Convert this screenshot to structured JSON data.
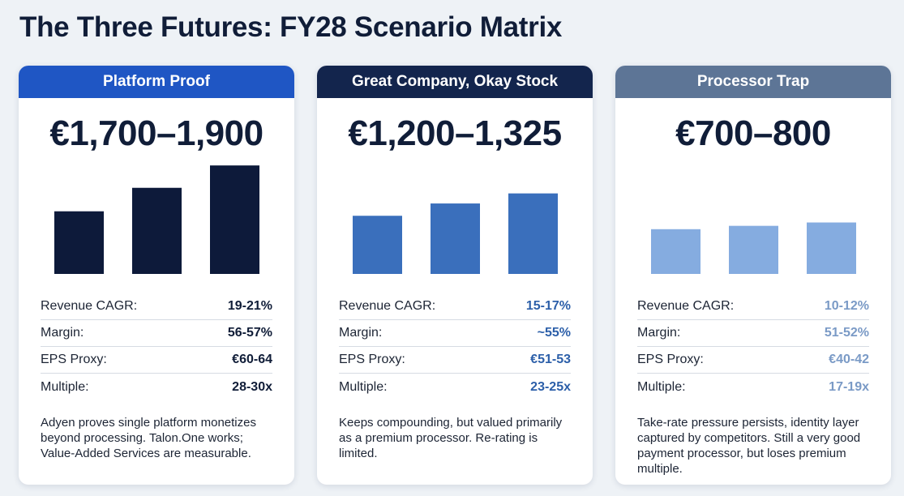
{
  "title": "The Three Futures: FY28 Scenario Matrix",
  "chart_data": [
    {
      "type": "bar",
      "title": "Platform Proof",
      "categories": [
        "",
        "",
        ""
      ],
      "values": [
        56,
        77,
        97
      ],
      "ylim": [
        0,
        100
      ],
      "color": "#0d1a3a",
      "headline": "€1,700–1,900"
    },
    {
      "type": "bar",
      "title": "Great Company, Okay Stock",
      "categories": [
        "",
        "",
        ""
      ],
      "values": [
        52,
        63,
        72
      ],
      "ylim": [
        0,
        100
      ],
      "color": "#3a6fbc",
      "headline": "€1,200–1,325"
    },
    {
      "type": "bar",
      "title": "Processor Trap",
      "categories": [
        "",
        "",
        ""
      ],
      "values": [
        40,
        43,
        46
      ],
      "ylim": [
        0,
        100
      ],
      "color": "#85ace0",
      "headline": "€700–800"
    }
  ],
  "scenarios": [
    {
      "name": "Platform Proof",
      "header_color": "#1f56c4",
      "value_color": "#101d38",
      "price": "€1,700–1,900",
      "metrics": [
        {
          "label": "Revenue CAGR:",
          "value": "19-21%"
        },
        {
          "label": "Margin:",
          "value": "56-57%"
        },
        {
          "label": "EPS Proxy:",
          "value": "€60-64"
        },
        {
          "label": "Multiple:",
          "value": "28-30x"
        }
      ],
      "description": "Adyen proves single platform monetizes beyond processing. Talon.One works; Value-Added Services are measurable."
    },
    {
      "name": "Great Company, Okay Stock",
      "header_color": "#13254d",
      "value_color": "#2c5fa9",
      "price": "€1,200–1,325",
      "metrics": [
        {
          "label": "Revenue CAGR:",
          "value": "15-17%"
        },
        {
          "label": "Margin:",
          "value": "~55%"
        },
        {
          "label": "EPS Proxy:",
          "value": "€51-53"
        },
        {
          "label": "Multiple:",
          "value": "23-25x"
        }
      ],
      "description": "Keeps compounding, but valued primarily as a premium processor. Re-rating is limited."
    },
    {
      "name": "Processor Trap",
      "header_color": "#5d7596",
      "value_color": "#7a9ac6",
      "price": "€700–800",
      "metrics": [
        {
          "label": "Revenue CAGR:",
          "value": "10-12%"
        },
        {
          "label": "Margin:",
          "value": "51-52%"
        },
        {
          "label": "EPS Proxy:",
          "value": "€40-42"
        },
        {
          "label": "Multiple:",
          "value": "17-19x"
        }
      ],
      "description": "Take-rate pressure persists, identity layer captured by competitors. Still a very good payment processor, but loses premium multiple."
    }
  ]
}
